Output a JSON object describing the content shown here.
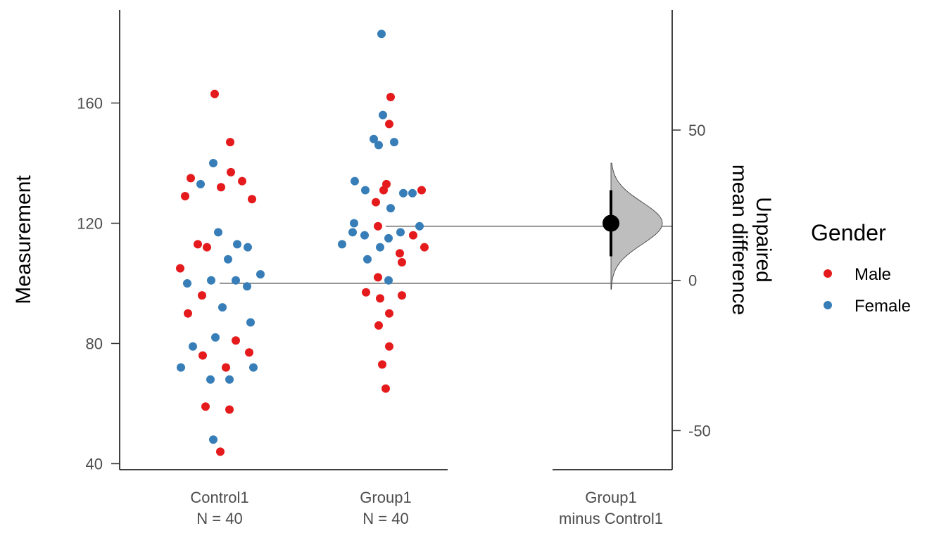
{
  "chart_data": {
    "type": "scatter",
    "subtype": "estimation-plot (swarm + bootstrap mean difference)",
    "ylabel": "Measurement",
    "ylim": [
      38,
      191
    ],
    "yticks": [
      40,
      80,
      120,
      160
    ],
    "delta_ylabel": [
      "Unpaired",
      "mean difference"
    ],
    "delta_ylim": [
      -63,
      90
    ],
    "delta_yticks": [
      -50,
      0,
      50
    ],
    "groups": [
      {
        "name": "Control1",
        "label_line1": "Control1",
        "label_line2": "N = 40",
        "mean": 100
      },
      {
        "name": "Group1",
        "label_line1": "Group1",
        "label_line2": "N = 40",
        "mean": 119
      }
    ],
    "contrast": {
      "label_line1": "Group1",
      "label_line2": "minus Control1",
      "mean_difference": 19,
      "ci_low": 8,
      "ci_high": 30,
      "distribution_range": [
        -3,
        39
      ],
      "distribution_sd": 7
    },
    "legend": {
      "title": "Gender",
      "entries": [
        {
          "name": "Male",
          "color": "#e41a1c"
        },
        {
          "name": "Female",
          "color": "#377eb8"
        }
      ]
    },
    "points": {
      "Control1": [
        {
          "y": 163,
          "offset": -7,
          "gender": "Male"
        },
        {
          "y": 147,
          "offset": 15,
          "gender": "Male"
        },
        {
          "y": 140,
          "offset": -9,
          "gender": "Female"
        },
        {
          "y": 137,
          "offset": 16,
          "gender": "Male"
        },
        {
          "y": 135,
          "offset": -41,
          "gender": "Male"
        },
        {
          "y": 134,
          "offset": 32,
          "gender": "Male"
        },
        {
          "y": 133,
          "offset": -27,
          "gender": "Female"
        },
        {
          "y": 132,
          "offset": 2,
          "gender": "Male"
        },
        {
          "y": 129,
          "offset": -49,
          "gender": "Male"
        },
        {
          "y": 128,
          "offset": 46,
          "gender": "Male"
        },
        {
          "y": 117,
          "offset": -2,
          "gender": "Female"
        },
        {
          "y": 113,
          "offset": -31,
          "gender": "Male"
        },
        {
          "y": 113,
          "offset": 25,
          "gender": "Female"
        },
        {
          "y": 112,
          "offset": -18,
          "gender": "Male"
        },
        {
          "y": 112,
          "offset": 40,
          "gender": "Female"
        },
        {
          "y": 108,
          "offset": 12,
          "gender": "Female"
        },
        {
          "y": 105,
          "offset": -56,
          "gender": "Male"
        },
        {
          "y": 103,
          "offset": 58,
          "gender": "Female"
        },
        {
          "y": 101,
          "offset": -12,
          "gender": "Female"
        },
        {
          "y": 101,
          "offset": 23,
          "gender": "Female"
        },
        {
          "y": 100,
          "offset": -46,
          "gender": "Female"
        },
        {
          "y": 99,
          "offset": 39,
          "gender": "Female"
        },
        {
          "y": 96,
          "offset": -25,
          "gender": "Male"
        },
        {
          "y": 92,
          "offset": 4,
          "gender": "Female"
        },
        {
          "y": 90,
          "offset": -45,
          "gender": "Male"
        },
        {
          "y": 87,
          "offset": 44,
          "gender": "Female"
        },
        {
          "y": 82,
          "offset": -6,
          "gender": "Female"
        },
        {
          "y": 81,
          "offset": 23,
          "gender": "Male"
        },
        {
          "y": 79,
          "offset": -38,
          "gender": "Female"
        },
        {
          "y": 77,
          "offset": 42,
          "gender": "Male"
        },
        {
          "y": 76,
          "offset": -24,
          "gender": "Male"
        },
        {
          "y": 72,
          "offset": -55,
          "gender": "Female"
        },
        {
          "y": 72,
          "offset": 9,
          "gender": "Male"
        },
        {
          "y": 72,
          "offset": 48,
          "gender": "Female"
        },
        {
          "y": 68,
          "offset": -13,
          "gender": "Female"
        },
        {
          "y": 68,
          "offset": 14,
          "gender": "Female"
        },
        {
          "y": 59,
          "offset": -20,
          "gender": "Male"
        },
        {
          "y": 58,
          "offset": 14,
          "gender": "Male"
        },
        {
          "y": 48,
          "offset": -9,
          "gender": "Female"
        },
        {
          "y": 44,
          "offset": 1,
          "gender": "Male"
        }
      ],
      "Group1": [
        {
          "y": 183,
          "offset": -6,
          "gender": "Female"
        },
        {
          "y": 162,
          "offset": 7,
          "gender": "Male"
        },
        {
          "y": 156,
          "offset": -4,
          "gender": "Female"
        },
        {
          "y": 153,
          "offset": 5,
          "gender": "Male"
        },
        {
          "y": 148,
          "offset": -17,
          "gender": "Female"
        },
        {
          "y": 147,
          "offset": 12,
          "gender": "Female"
        },
        {
          "y": 146,
          "offset": -10,
          "gender": "Female"
        },
        {
          "y": 134,
          "offset": -44,
          "gender": "Female"
        },
        {
          "y": 133,
          "offset": 1,
          "gender": "Male"
        },
        {
          "y": 131,
          "offset": -29,
          "gender": "Female"
        },
        {
          "y": 131,
          "offset": -3,
          "gender": "Male"
        },
        {
          "y": 131,
          "offset": 51,
          "gender": "Male"
        },
        {
          "y": 130,
          "offset": 25,
          "gender": "Female"
        },
        {
          "y": 130,
          "offset": 38,
          "gender": "Female"
        },
        {
          "y": 127,
          "offset": -14,
          "gender": "Male"
        },
        {
          "y": 125,
          "offset": 7,
          "gender": "Female"
        },
        {
          "y": 120,
          "offset": -45,
          "gender": "Female"
        },
        {
          "y": 119,
          "offset": -11,
          "gender": "Male"
        },
        {
          "y": 119,
          "offset": 48,
          "gender": "Female"
        },
        {
          "y": 117,
          "offset": -47,
          "gender": "Female"
        },
        {
          "y": 117,
          "offset": 21,
          "gender": "Female"
        },
        {
          "y": 116,
          "offset": -30,
          "gender": "Female"
        },
        {
          "y": 115,
          "offset": 4,
          "gender": "Female"
        },
        {
          "y": 116,
          "offset": 39,
          "gender": "Male"
        },
        {
          "y": 113,
          "offset": -62,
          "gender": "Female"
        },
        {
          "y": 112,
          "offset": 55,
          "gender": "Male"
        },
        {
          "y": 112,
          "offset": -8,
          "gender": "Female"
        },
        {
          "y": 110,
          "offset": 20,
          "gender": "Male"
        },
        {
          "y": 108,
          "offset": -26,
          "gender": "Female"
        },
        {
          "y": 107,
          "offset": 23,
          "gender": "Male"
        },
        {
          "y": 102,
          "offset": -11,
          "gender": "Male"
        },
        {
          "y": 101,
          "offset": 4,
          "gender": "Female"
        },
        {
          "y": 97,
          "offset": -28,
          "gender": "Male"
        },
        {
          "y": 96,
          "offset": 23,
          "gender": "Male"
        },
        {
          "y": 95,
          "offset": -8,
          "gender": "Male"
        },
        {
          "y": 90,
          "offset": 5,
          "gender": "Male"
        },
        {
          "y": 86,
          "offset": -10,
          "gender": "Male"
        },
        {
          "y": 79,
          "offset": 5,
          "gender": "Male"
        },
        {
          "y": 73,
          "offset": -5,
          "gender": "Male"
        },
        {
          "y": 65,
          "offset": 0,
          "gender": "Male"
        }
      ]
    }
  }
}
